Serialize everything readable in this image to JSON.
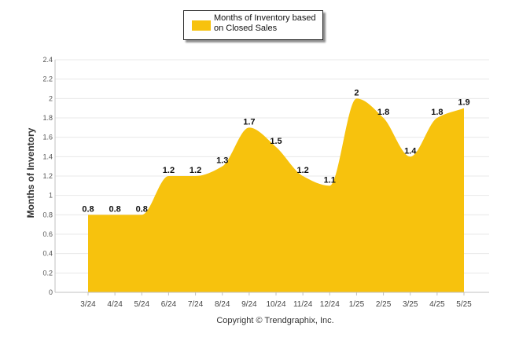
{
  "chart_data": {
    "type": "area",
    "categories": [
      "3/24",
      "4/24",
      "5/24",
      "6/24",
      "7/24",
      "8/24",
      "9/24",
      "10/24",
      "11/24",
      "12/24",
      "1/25",
      "2/25",
      "3/25",
      "4/25",
      "5/25"
    ],
    "series": [
      {
        "name": "Months of Inventory based on Closed Sales",
        "values": [
          0.8,
          0.8,
          0.8,
          1.2,
          1.2,
          1.3,
          1.7,
          1.5,
          1.2,
          1.1,
          2,
          1.8,
          1.4,
          1.8,
          1.9
        ]
      }
    ],
    "data_labels": [
      "0.8",
      "0.8",
      "0.8",
      "1.2",
      "1.2",
      "1.3",
      "1.7",
      "1.5",
      "1.2",
      "1.1",
      "2",
      "1.8",
      "1.4",
      "1.8",
      "1.9"
    ],
    "ylabel": "Months of Inventory",
    "xlabel": "",
    "ylim": [
      0,
      2.4
    ],
    "yticks": [
      "0",
      "0.2",
      "0.4",
      "0.6",
      "0.8",
      "1",
      "1.2",
      "1.4",
      "1.6",
      "1.8",
      "2",
      "2.2",
      "2.4"
    ],
    "grid": true,
    "legend_placement": "top-center",
    "colors": {
      "fill": "#F7C20D",
      "grid": "#E8E8E8",
      "axis": "#C0C0C0"
    }
  },
  "legend": {
    "label": "Months of Inventory based on Closed Sales"
  },
  "footer": {
    "copyright": "Copyright © Trendgraphix, Inc."
  }
}
